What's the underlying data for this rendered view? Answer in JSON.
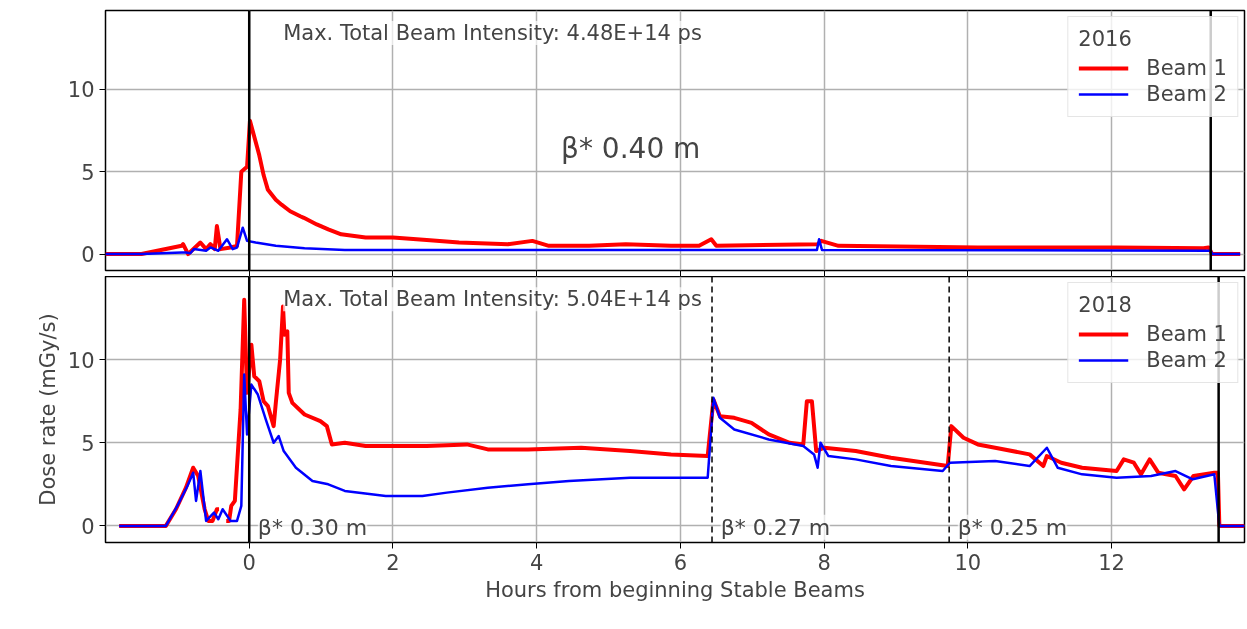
{
  "chart_data": [
    {
      "type": "line",
      "legend_title": "2016",
      "annotations": [
        "Max. Total Beam Intensity: 4.48E+14 ps",
        "β* 0.40 m"
      ],
      "xlim": [
        -2.0,
        13.85
      ],
      "xticks": [
        0,
        2,
        4,
        6,
        8,
        10,
        12
      ],
      "ylim": [
        -1.0,
        14.8
      ],
      "yticks": [
        0,
        5,
        10
      ],
      "tick_labels": "y",
      "grid": true,
      "legend": "top right",
      "line_style": "solid",
      "ref_lines": [
        {
          "axis": "x",
          "value": 0,
          "color": "#000000",
          "line_style": "solid"
        },
        {
          "axis": "x",
          "value": 13.38,
          "color": "#000000",
          "line_style": "solid"
        }
      ],
      "series": [
        {
          "name": "Beam 1",
          "color": "#ff0000",
          "x": [
            -2.0,
            -1.5,
            -0.94,
            -0.92,
            -0.85,
            -0.68,
            -0.6,
            -0.54,
            -0.48,
            -0.45,
            -0.4,
            -0.26,
            -0.17,
            -0.11,
            -0.03,
            0.01,
            0.06,
            0.14,
            0.2,
            0.26,
            0.37,
            0.45,
            0.57,
            0.71,
            0.76,
            0.94,
            1.1,
            1.28,
            1.62,
            2.0,
            2.47,
            2.92,
            3.6,
            3.94,
            4.17,
            4.73,
            5.24,
            5.87,
            6.26,
            6.43,
            6.5,
            7.91,
            7.96,
            8.2,
            10.14,
            12.07,
            13.28,
            13.35,
            13.4,
            13.79
          ],
          "values": [
            0,
            0,
            0.5,
            0.6,
            0,
            0.7,
            0.3,
            0.6,
            0.3,
            1.7,
            0.3,
            0.4,
            0.5,
            5.0,
            5.3,
            8.1,
            7.3,
            6.0,
            4.8,
            3.9,
            3.3,
            3.0,
            2.6,
            2.3,
            2.2,
            1.8,
            1.5,
            1.2,
            1.0,
            1.0,
            0.85,
            0.7,
            0.6,
            0.8,
            0.5,
            0.5,
            0.6,
            0.5,
            0.5,
            0.9,
            0.5,
            0.6,
            0.8,
            0.5,
            0.4,
            0.4,
            0.35,
            0.4,
            0,
            0
          ]
        },
        {
          "name": "Beam 2",
          "color": "#0000ff",
          "x": [
            -2.0,
            -1.5,
            -0.94,
            -0.88,
            -0.82,
            -0.77,
            -0.6,
            -0.54,
            -0.43,
            -0.31,
            -0.23,
            -0.17,
            -0.09,
            -0.03,
            0.09,
            0.37,
            0.77,
            1.33,
            6.4,
            7.9,
            7.93,
            7.97,
            13.38,
            13.4,
            13.79
          ],
          "values": [
            0,
            0,
            0.1,
            0.1,
            0.05,
            0.3,
            0.2,
            0.4,
            0.2,
            0.9,
            0.3,
            0.4,
            1.6,
            0.8,
            0.7,
            0.5,
            0.35,
            0.25,
            0.25,
            0.25,
            0.9,
            0.25,
            0.2,
            0,
            0
          ]
        }
      ]
    },
    {
      "type": "line",
      "legend_title": "2018",
      "xlabel": "Hours from beginning Stable Beams",
      "ylabel": "Dose rate (mGy/s)",
      "annotations": [
        "Max. Total Beam Intensity: 5.04E+14 ps"
      ],
      "xlim": [
        -2.0,
        13.85
      ],
      "xticks": [
        0,
        2,
        4,
        6,
        8,
        10,
        12
      ],
      "ylim": [
        -1.0,
        15.0
      ],
      "yticks": [
        0,
        5,
        10
      ],
      "grid": true,
      "legend": "top right",
      "line_style": "solid",
      "ref_lines": [
        {
          "axis": "x",
          "value": 0,
          "color": "#000000",
          "line_style": "solid",
          "label": "β* 0.30 m"
        },
        {
          "axis": "x",
          "value": 6.44,
          "color": "#000000",
          "line_style": "dashed",
          "label": "β* 0.27 m"
        },
        {
          "axis": "x",
          "value": 9.74,
          "color": "#000000",
          "line_style": "dashed",
          "label": "β* 0.25 m"
        },
        {
          "axis": "x",
          "value": 13.49,
          "color": "#000000",
          "line_style": "solid"
        }
      ],
      "series": [
        {
          "name": "Beam 1",
          "color": "#ff0000",
          "x": [
            -1.81,
            -1.16,
            -1.02,
            -0.88,
            -0.78,
            -0.71,
            -0.62,
            -0.57,
            -0.51,
            -0.45,
            -0.42,
            -0.39,
            -0.36,
            -0.32,
            -0.28,
            -0.25,
            -0.2,
            -0.12,
            -0.07,
            -0.03,
            0.03,
            0.07,
            0.14,
            0.2,
            0.26,
            0.34,
            0.37,
            0.43,
            0.47,
            0.49,
            0.53,
            0.55,
            0.6,
            0.77,
            0.99,
            1.08,
            1.15,
            1.33,
            1.62,
            1.9,
            2.47,
            3.03,
            3.32,
            3.88,
            4.62,
            5.3,
            5.87,
            6.38,
            6.46,
            6.55,
            6.75,
            6.99,
            7.23,
            7.52,
            7.71,
            7.76,
            7.83,
            7.89,
            8.0,
            8.44,
            8.93,
            9.41,
            9.72,
            9.77,
            9.94,
            10.14,
            10.38,
            10.86,
            11.05,
            11.1,
            11.3,
            11.59,
            12.07,
            12.17,
            12.31,
            12.41,
            12.53,
            12.65,
            12.89,
            13.01,
            13.14,
            13.43,
            13.48,
            13.5,
            13.85
          ],
          "values": [
            0,
            0,
            1.0,
            2.3,
            3.5,
            3.0,
            1.0,
            0.3,
            0.3,
            1.0,
            1.0,
            null,
            null,
            0.3,
            0.3,
            1.2,
            1.5,
            7.0,
            13.6,
            8.0,
            10.9,
            9.0,
            8.7,
            7.5,
            7.2,
            6.0,
            7.4,
            10.0,
            13.2,
            11.5,
            11.7,
            8.0,
            7.4,
            6.7,
            6.3,
            6.0,
            4.9,
            5.0,
            4.8,
            4.8,
            4.8,
            4.9,
            4.6,
            4.6,
            4.7,
            4.5,
            4.3,
            4.2,
            7.6,
            6.6,
            6.5,
            6.2,
            5.5,
            5.0,
            4.9,
            7.5,
            7.5,
            4.5,
            4.7,
            4.5,
            4.1,
            3.8,
            3.6,
            6.0,
            5.3,
            4.9,
            4.7,
            4.3,
            3.6,
            4.2,
            3.8,
            3.5,
            3.3,
            4.0,
            3.8,
            3.1,
            4.0,
            3.2,
            3.0,
            2.2,
            3.0,
            3.2,
            3.2,
            0,
            0
          ]
        },
        {
          "name": "Beam 2",
          "color": "#0000ff",
          "x": [
            -1.81,
            -1.16,
            -1.0,
            -0.86,
            -0.78,
            -0.74,
            -0.68,
            -0.6,
            -0.49,
            -0.43,
            -0.37,
            -0.26,
            -0.17,
            -0.11,
            -0.07,
            -0.03,
            0.03,
            0.12,
            0.23,
            0.34,
            0.41,
            0.48,
            0.65,
            0.88,
            1.1,
            1.33,
            1.9,
            2.41,
            2.75,
            3.32,
            3.88,
            4.45,
            5.3,
            6.38,
            6.46,
            6.55,
            6.75,
            7.23,
            7.71,
            7.86,
            7.91,
            7.95,
            8.06,
            8.44,
            8.93,
            9.65,
            9.75,
            10.38,
            10.86,
            11.1,
            11.25,
            11.59,
            12.07,
            12.55,
            12.89,
            13.13,
            13.43,
            13.5,
            13.85
          ],
          "values": [
            0,
            0,
            1.2,
            2.4,
            3.2,
            1.5,
            3.3,
            0.3,
            0.8,
            0.4,
            1.0,
            0.3,
            0.3,
            1.2,
            9.1,
            5.5,
            8.5,
            7.9,
            6.4,
            5.0,
            5.4,
            4.5,
            3.5,
            2.7,
            2.5,
            2.1,
            1.8,
            1.8,
            2.0,
            2.3,
            2.5,
            2.7,
            2.9,
            2.9,
            7.7,
            6.5,
            5.8,
            5.2,
            4.8,
            4.3,
            3.5,
            5.0,
            4.2,
            4.0,
            3.6,
            3.3,
            3.8,
            3.9,
            3.6,
            4.7,
            3.5,
            3.1,
            2.9,
            3.0,
            3.3,
            2.8,
            3.1,
            0,
            0
          ]
        }
      ]
    }
  ]
}
